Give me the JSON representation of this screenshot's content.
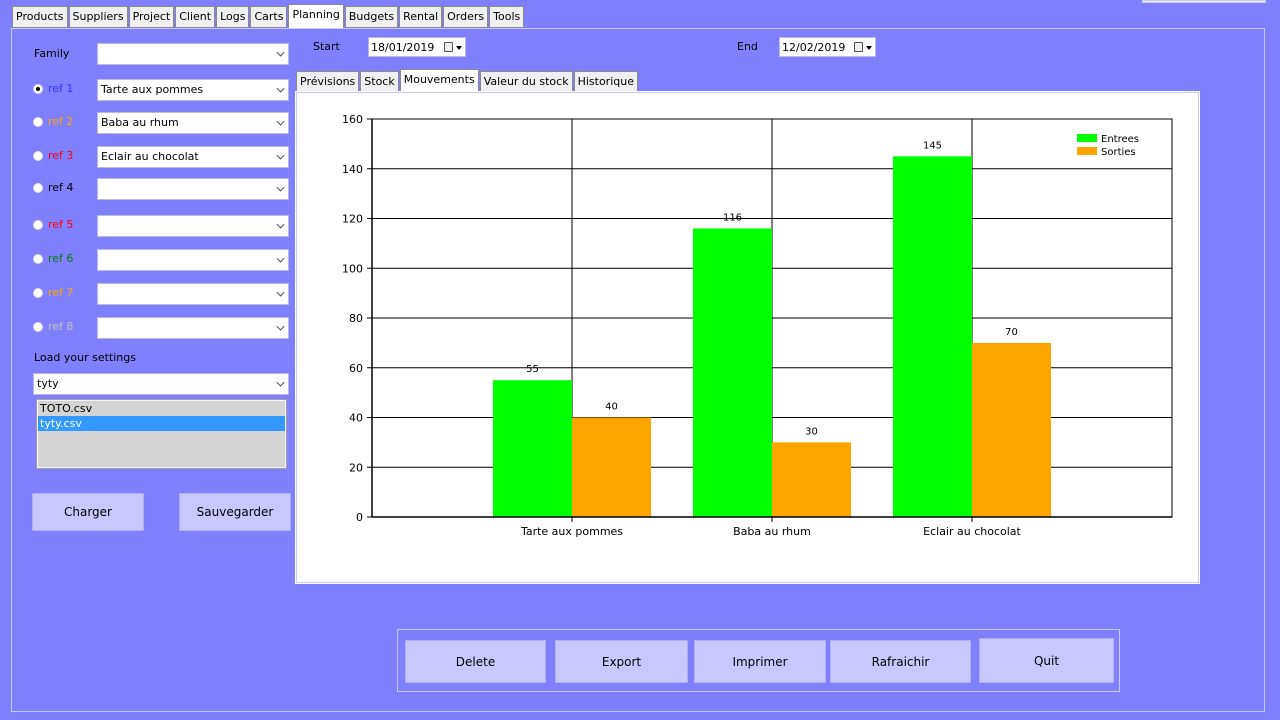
{
  "main_tabs": [
    "Products",
    "Suppliers",
    "Project",
    "Client",
    "Logs",
    "Carts",
    "Planning",
    "Budgets",
    "Rental",
    "Orders",
    "Tools"
  ],
  "active_main_tab": "Planning",
  "left": {
    "family_label": "Family",
    "family_value": "",
    "refs": [
      {
        "label": "ref 1",
        "color": "#3333ff",
        "value": "Tarte aux pommes",
        "checked": true
      },
      {
        "label": "ref 2",
        "color": "#ffa500",
        "value": "Baba au rhum",
        "checked": false
      },
      {
        "label": "ref 3",
        "color": "#ff0000",
        "value": "Eclair au chocolat",
        "checked": false
      },
      {
        "label": "ref 4",
        "color": "#000000",
        "value": "",
        "checked": false
      },
      {
        "label": "ref 5",
        "color": "#ff0000",
        "value": "",
        "checked": false
      },
      {
        "label": "ref 6",
        "color": "#008000",
        "value": "",
        "checked": false
      },
      {
        "label": "ref 7",
        "color": "#ffa500",
        "value": "",
        "checked": false
      },
      {
        "label": "ref 8",
        "color": "#c0c0c0",
        "value": "",
        "checked": false
      }
    ],
    "load_label": "Load your settings",
    "settings_value": "tyty",
    "files": [
      "TOTO.csv",
      "tyty.csv"
    ],
    "selected_file": "tyty.csv",
    "charger": "Charger",
    "sauvegarder": "Sauvegarder"
  },
  "dates": {
    "start_label": "Start",
    "start_value": "18/01/2019",
    "end_label": "End",
    "end_value": "12/02/2019"
  },
  "sub_tabs": [
    "Prévisions",
    "Stock",
    "Mouvements",
    "Valeur du stock",
    "Historique"
  ],
  "active_sub_tab": "Mouvements",
  "chart_data": {
    "type": "bar",
    "categories": [
      "Tarte aux pommes",
      "Baba au rhum",
      "Eclair au chocolat"
    ],
    "series": [
      {
        "name": "Entrees",
        "color": "#00ff00",
        "values": [
          55,
          116,
          145
        ]
      },
      {
        "name": "Sorties",
        "color": "#ffa500",
        "values": [
          40,
          30,
          70
        ]
      }
    ],
    "ylim": [
      0,
      160
    ],
    "yticks": [
      0,
      20,
      40,
      60,
      80,
      100,
      120,
      140,
      160
    ],
    "grid": true,
    "legend": "top-right"
  },
  "bottom_buttons": [
    "Delete",
    "Export",
    "Imprimer",
    "Rafraichir",
    "Quit"
  ]
}
